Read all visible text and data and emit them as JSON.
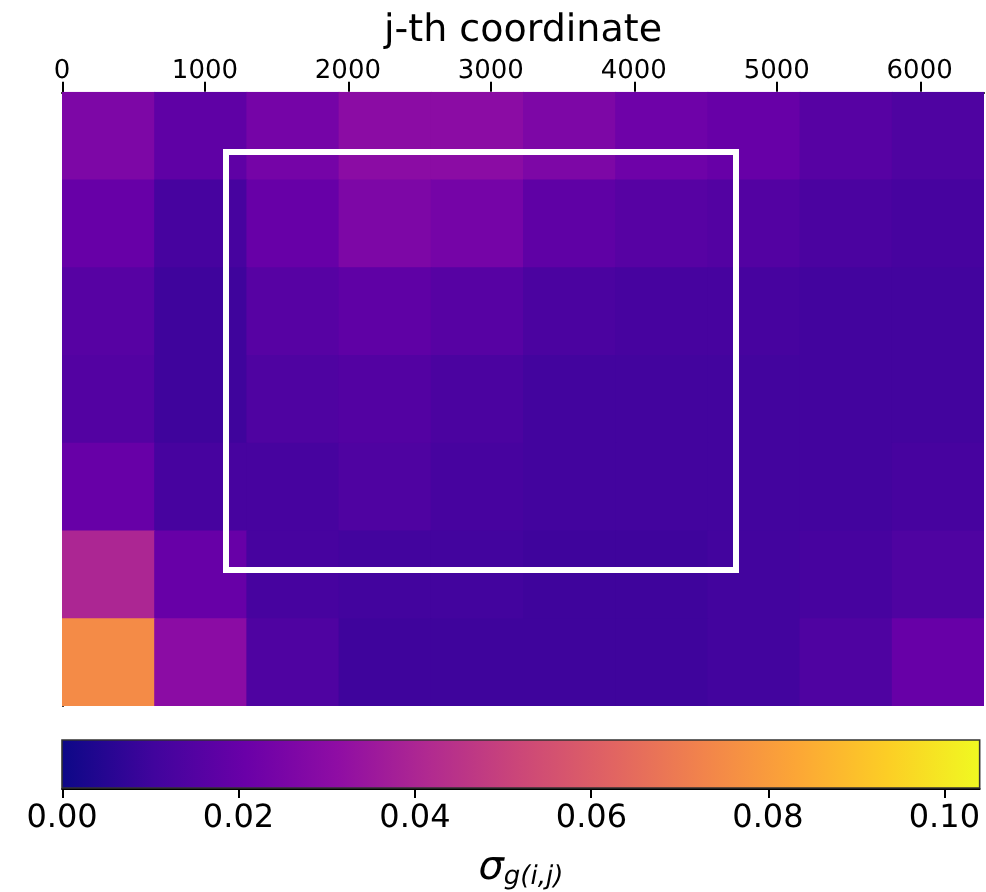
{
  "chart_data": {
    "type": "heatmap",
    "xlabel": "j-th coordinate",
    "clabel": "σ$_{g(i,j)}$",
    "x": [
      322.5,
      967.5,
      1612.5,
      2257.5,
      2902.5,
      3547.5,
      4192.5,
      4837.5,
      5482.5,
      6127.5
    ],
    "y_categories": [
      null,
      null,
      null,
      null,
      null,
      null,
      null
    ],
    "cells": [
      [
        0.026,
        0.018,
        0.024,
        0.03,
        0.03,
        0.026,
        0.022,
        0.02,
        0.016,
        0.014
      ],
      [
        0.02,
        0.012,
        0.02,
        0.026,
        0.024,
        0.018,
        0.016,
        0.015,
        0.013,
        0.012
      ],
      [
        0.016,
        0.01,
        0.016,
        0.018,
        0.016,
        0.013,
        0.012,
        0.012,
        0.011,
        0.011
      ],
      [
        0.015,
        0.01,
        0.014,
        0.015,
        0.013,
        0.011,
        0.011,
        0.011,
        0.011,
        0.011
      ],
      [
        0.02,
        0.012,
        0.012,
        0.014,
        0.012,
        0.011,
        0.011,
        0.011,
        0.011,
        0.012
      ],
      [
        0.04,
        0.02,
        0.012,
        0.011,
        0.011,
        0.01,
        0.01,
        0.011,
        0.012,
        0.014
      ],
      [
        0.075,
        0.03,
        0.014,
        0.01,
        0.01,
        0.01,
        0.01,
        0.011,
        0.014,
        0.02
      ]
    ],
    "xlim": [
      0,
      6450
    ],
    "xticks": [
      0,
      1000,
      2000,
      3000,
      4000,
      5000,
      6000
    ],
    "clim": [
      0,
      0.104
    ],
    "cticks": [
      {
        "value": 0,
        "label": "0.00"
      },
      {
        "value": 0.02,
        "label": "0.02"
      },
      {
        "value": 0.04,
        "label": "0.04"
      },
      {
        "value": 0.06,
        "label": "0.06"
      },
      {
        "value": 0.08,
        "label": "0.08"
      },
      {
        "value": 0.1,
        "label": "0.10"
      }
    ],
    "tick_labels": "x"
  }
}
